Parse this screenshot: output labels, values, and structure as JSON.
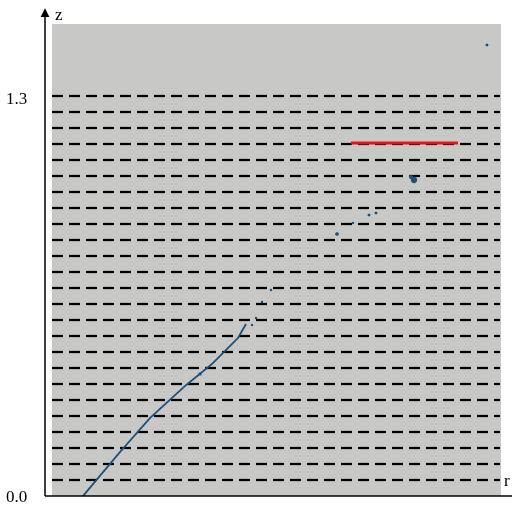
{
  "axes": {
    "x_label": "r",
    "y_label": "z",
    "y_tick_top": "1.3",
    "y_tick_bottom": "0.0"
  },
  "colors": {
    "panel_background": "#c8c8c6",
    "dashed_lines": "#000000",
    "highlight_segment": "#e8161b",
    "trace": "#1f4e79",
    "axes": "#000000"
  },
  "chart_data": {
    "type": "scatter",
    "x_label": "r",
    "y_label": "z",
    "y_ticks": [
      0.0,
      1.3
    ],
    "horizontal_dashed_lines": 25,
    "has_highlight_segment": true
  }
}
